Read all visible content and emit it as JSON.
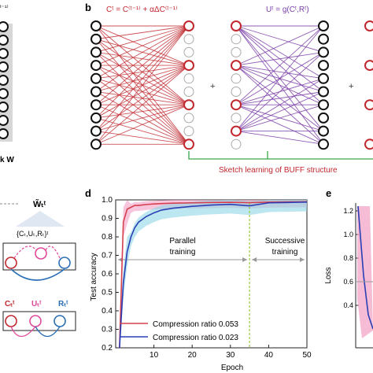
{
  "panels": {
    "b": {
      "label": "b",
      "eq_left": "Cᵗ = C⁽ᵗ⁻¹⁾ + αΔC⁽ᵗ⁻¹⁾",
      "eq_right": "Uᵗ = g(Cᵗ,Rᵗ)",
      "plus": "+",
      "caption": "Sketch learning of BUFF structure",
      "colors": {
        "red": "#c0282e",
        "purple": "#7b3fa8",
        "green": "#3aa64a"
      }
    },
    "a_partial": {
      "top_fragment": "ᵗ⁻¹⁾",
      "bottom_fragment": "k W",
      "w_label": "W̃ₜᵗ",
      "set_label": "{Cₜ,Uₜ,Rₜ}ᵗ",
      "c_label": "Cₜᵗ",
      "u_label": "Uₜᵗ",
      "r_label": "Rₜᵗ"
    },
    "d": {
      "label": "d",
      "xlabel": "Epoch",
      "ylabel": "Test accuracy",
      "x_ticks": [
        "10",
        "20",
        "30",
        "40",
        "50"
      ],
      "y_ticks": [
        "0.2",
        "0.3",
        "0.4",
        "0.5",
        "0.6",
        "0.7",
        "0.8",
        "0.9",
        "1.0"
      ],
      "annot_parallel_1": "Parallel",
      "annot_parallel_2": "training",
      "annot_successive_1": "Successive",
      "annot_successive_2": "training"
    },
    "e": {
      "label": "e",
      "ylabel": "Loss",
      "y_ticks": [
        "1.2",
        "1.0",
        "0.8",
        "0.6",
        "0.4"
      ]
    }
  },
  "chart_data": {
    "type": "line",
    "xlabel": "Epoch",
    "ylabel": "Test accuracy",
    "xlim": [
      0,
      50
    ],
    "ylim": [
      0.2,
      1.0
    ],
    "vline_x": 35,
    "legend_position": "bottom-left",
    "series": [
      {
        "name": "Compression ratio 0.053",
        "color": "#d6404e",
        "band_color": "#f2a0c4",
        "x": [
          1,
          2,
          3,
          4,
          5,
          6,
          8,
          10,
          12,
          15,
          20,
          25,
          30,
          35,
          40,
          45,
          50
        ],
        "y": [
          0.2,
          0.88,
          0.95,
          0.96,
          0.97,
          0.97,
          0.975,
          0.978,
          0.98,
          0.982,
          0.984,
          0.986,
          0.987,
          0.985,
          0.988,
          0.989,
          0.99
        ]
      },
      {
        "name": "Compression ratio 0.023",
        "color": "#2a3fb5",
        "band_color": "#8fd6e6",
        "x": [
          1,
          2,
          3,
          4,
          5,
          6,
          8,
          10,
          12,
          15,
          20,
          25,
          30,
          35,
          40,
          45,
          50
        ],
        "y": [
          0.2,
          0.55,
          0.72,
          0.8,
          0.85,
          0.88,
          0.91,
          0.93,
          0.945,
          0.955,
          0.965,
          0.972,
          0.976,
          0.968,
          0.984,
          0.986,
          0.988
        ]
      }
    ]
  }
}
